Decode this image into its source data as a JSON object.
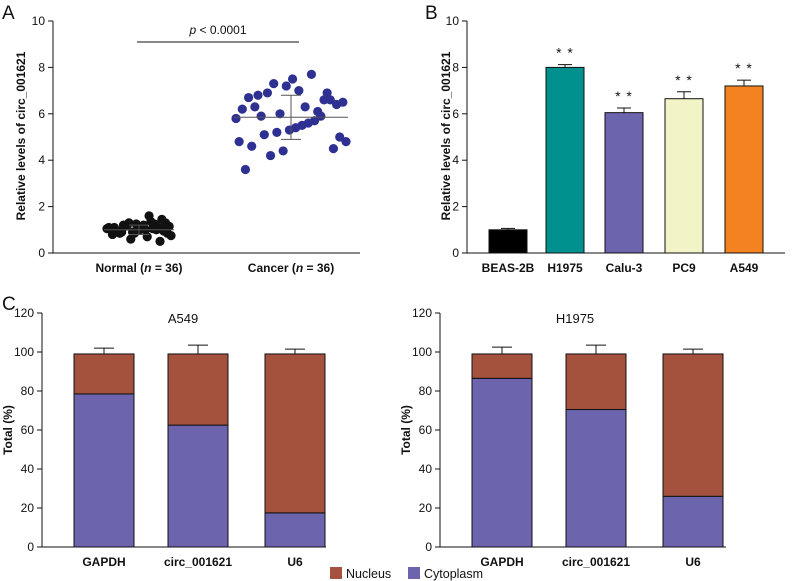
{
  "panels": {
    "a": "A",
    "b": "B",
    "c": "C"
  },
  "chart_data": [
    {
      "id": "A",
      "type": "scatter",
      "ylabel": "Relative levels of circ_001621",
      "ylim": [
        0,
        10
      ],
      "yticks": [
        0,
        2,
        4,
        6,
        8,
        10
      ],
      "annotation": "p < 0.0001",
      "annotation_p": "p",
      "annotation_rest": " < 0.0001",
      "groups": [
        {
          "label": "Normal (n = 36)",
          "label_pre": "Normal (",
          "label_n": "n",
          "label_post": " = 36)",
          "color": "#111111",
          "mean": 1.0,
          "sd": 0.2,
          "points": [
            1.05,
            0.85,
            0.9,
            1.0,
            1.1,
            0.75,
            0.95,
            0.6,
            1.2,
            1.0,
            1.15,
            0.9,
            1.3,
            1.05,
            1.25,
            0.85,
            1.1,
            1.2,
            1.0,
            1.05,
            1.3,
            0.8,
            1.15,
            1.1,
            1.35,
            0.95,
            1.0,
            1.2,
            1.25,
            1.6,
            1.45,
            1.1,
            0.9,
            0.85,
            0.7,
            0.5
          ]
        },
        {
          "label": "Cancer (n = 36)",
          "label_pre": "Cancer (",
          "label_n": "n",
          "label_post": " = 36)",
          "color": "#2e3192",
          "mean": 5.85,
          "sd": 0.95,
          "points": [
            5.8,
            6.8,
            6.0,
            5.5,
            6.6,
            4.8,
            6.3,
            5.2,
            7.0,
            5.9,
            6.5,
            4.6,
            7.3,
            5.4,
            6.1,
            5.0,
            6.7,
            4.2,
            7.5,
            5.7,
            6.4,
            3.6,
            6.9,
            5.3,
            7.7,
            4.5,
            6.2,
            5.1,
            7.2,
            5.6,
            6.6,
            4.8,
            5.9,
            4.4,
            6.3,
            6.9
          ]
        }
      ]
    },
    {
      "id": "B",
      "type": "bar",
      "ylabel": "Relative levels of circ_001621",
      "ylim": [
        0,
        10
      ],
      "yticks": [
        0,
        2,
        4,
        6,
        8,
        10
      ],
      "categories": [
        "BEAS-2B",
        "H1975",
        "Calu-3",
        "PC9",
        "A549"
      ],
      "values": [
        1.0,
        8.0,
        6.05,
        6.65,
        7.2
      ],
      "errors": [
        0.06,
        0.12,
        0.2,
        0.3,
        0.25
      ],
      "colors": [
        "#000000",
        "#00918f",
        "#6c64ad",
        "#f2f4c8",
        "#f58220"
      ],
      "significance": [
        "",
        "* *",
        "* *",
        "* *",
        "* *"
      ]
    },
    {
      "id": "C1",
      "type": "bar",
      "stacked": true,
      "title": "A549",
      "ylabel": "Total (%)",
      "ylim": [
        0,
        120
      ],
      "yticks": [
        0,
        20,
        40,
        60,
        80,
        100,
        120
      ],
      "categories": [
        "GAPDH",
        "circ_001621",
        "U6"
      ],
      "series": [
        {
          "name": "Cytoplasm",
          "color": "#6c64ad",
          "values": [
            78.5,
            62.5,
            17.5
          ],
          "errors": [
            3.5,
            3.5,
            3.5
          ]
        },
        {
          "name": "Nucleus",
          "color": "#a4513d",
          "values": [
            20.5,
            36.5,
            81.5
          ],
          "errors": [
            3.0,
            4.5,
            2.5
          ]
        }
      ]
    },
    {
      "id": "C2",
      "type": "bar",
      "stacked": true,
      "title": "H1975",
      "ylabel": "Total (%)",
      "ylim": [
        0,
        120
      ],
      "yticks": [
        0,
        20,
        40,
        60,
        80,
        100,
        120
      ],
      "categories": [
        "GAPDH",
        "circ_001621",
        "U6"
      ],
      "series": [
        {
          "name": "Cytoplasm",
          "color": "#6c64ad",
          "values": [
            86.5,
            70.5,
            26.0
          ],
          "errors": [
            3.5,
            3.5,
            3.5
          ]
        },
        {
          "name": "Nucleus",
          "color": "#a4513d",
          "values": [
            12.5,
            28.5,
            73.0
          ],
          "errors": [
            3.5,
            4.5,
            2.5
          ]
        }
      ]
    }
  ],
  "legend": [
    {
      "name": "Nucleus",
      "color": "#a4513d"
    },
    {
      "name": "Cytoplasm",
      "color": "#6c64ad"
    }
  ]
}
